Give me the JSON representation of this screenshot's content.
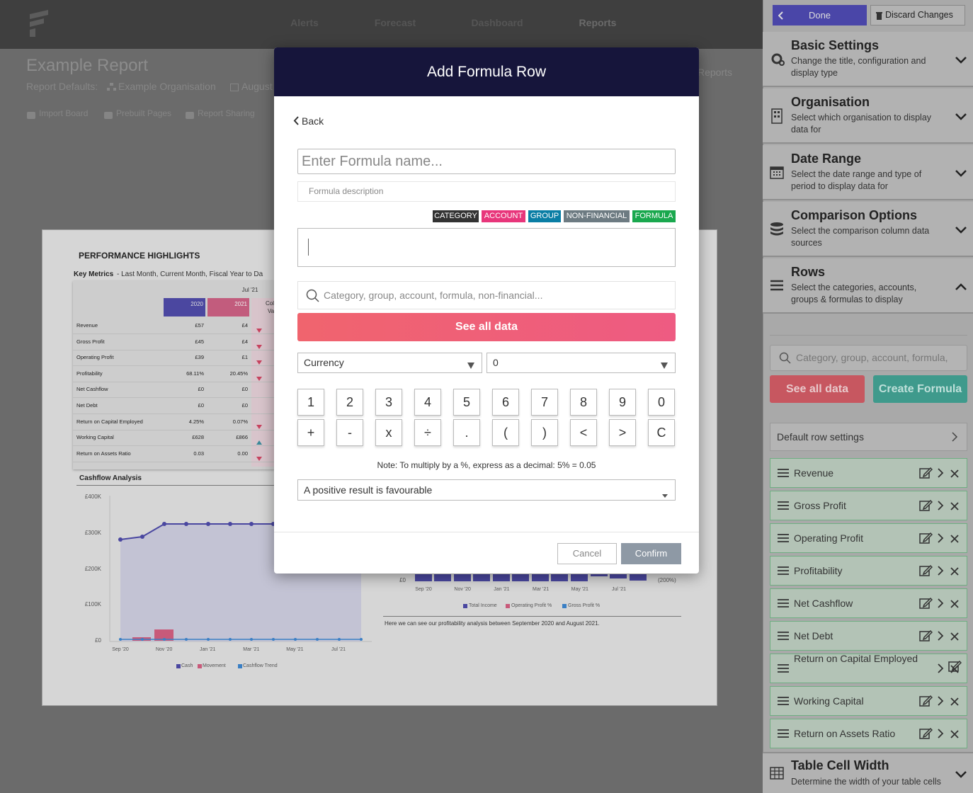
{
  "nav": {
    "items": [
      "Alerts",
      "Forecast",
      "Dashboard",
      "Reports"
    ]
  },
  "report": {
    "title": "Example Report",
    "defaults_label": "Report Defaults:",
    "organisation": "Example Organisation",
    "date": "August",
    "reports_link": "Reports",
    "tools": [
      "Import Board",
      "Prebuilt Pages",
      "Report Sharing"
    ]
  },
  "page": {
    "heading": "PERFORMANCE HIGHLIGHTS",
    "table": {
      "title": "Key Metrics",
      "subtitle": "- Last Month, Current Month, Fiscal Year to Da",
      "period": "Jul '21",
      "columns": [
        "2020",
        "2021"
      ],
      "column3": [
        "Col",
        "Va"
      ],
      "rows": [
        [
          "Revenue",
          "£57",
          "£4"
        ],
        [
          "Gross Profit",
          "£45",
          "£4"
        ],
        [
          "Operating Profit",
          "£39",
          "£1"
        ],
        [
          "Profitability",
          "68.11%",
          "20.45%"
        ],
        [
          "Net Cashflow",
          "£0",
          "£0"
        ],
        [
          "Net Debt",
          "£0",
          "£0"
        ],
        [
          "Return on Capital Employed",
          "4.25%",
          "0.07%"
        ],
        [
          "Working Capital",
          "£628",
          "£866"
        ],
        [
          "Return on Assets Ratio",
          "0.03",
          "0.00"
        ]
      ]
    },
    "cashflow": {
      "title": "Cashflow Analysis",
      "yticks": [
        "£400K",
        "£300K",
        "£200K",
        "£100K",
        "£0"
      ],
      "xticks": [
        "Sep '20",
        "Nov '20",
        "Jan '21",
        "Mar '21",
        "May '21",
        "Jul '21"
      ],
      "legend": [
        "Cash",
        "Movement",
        "Cashflow Trend"
      ]
    },
    "profitability": {
      "xticks": [
        "Sep '20",
        "Nov '20",
        "Jan '21",
        "Mar '21",
        "May '21",
        "Jul '21"
      ],
      "left_label": "£0",
      "right_label": "(200%)",
      "legend": [
        "Total Income",
        "Operating Profit %",
        "Gross Profit %"
      ],
      "note": "Here we can see our profitability analysis between September 2020 and August 2021."
    }
  },
  "modal": {
    "title": "Add Formula Row",
    "back": "Back",
    "name_placeholder": "Enter Formula name...",
    "description_placeholder": "Formula description",
    "tags": [
      "CATEGORY",
      "ACCOUNT",
      "GROUP",
      "NON-FINANCIAL",
      "FORMULA"
    ],
    "search_placeholder": "Category, group, account, formula, non-financial...",
    "see_all": "See all data",
    "format": "Currency",
    "decimals": "0",
    "keys": [
      "1",
      "2",
      "3",
      "4",
      "5",
      "6",
      "7",
      "8",
      "9",
      "0",
      "+",
      "-",
      "x",
      "÷",
      ".",
      "(",
      ")",
      "<",
      ">",
      "C"
    ],
    "note": "Note: To multiply by a %, express as a decimal: 5% = 0.05",
    "favourability": "A positive result is favourable",
    "cancel": "Cancel",
    "confirm": "Confirm"
  },
  "sidebar": {
    "done": "Done",
    "discard": "Discard Changes",
    "sections": [
      {
        "title": "Basic Settings",
        "description": "Change the title, configuration and display type"
      },
      {
        "title": "Organisation",
        "description": "Select which organisation to display data for"
      },
      {
        "title": "Date Range",
        "description": "Select the date range and type of period to display data for"
      },
      {
        "title": "Comparison Options",
        "description": "Select the comparison column data sources"
      },
      {
        "title": "Rows",
        "description": "Select the categories, accounts, groups & formulas to display"
      }
    ],
    "search_placeholder": "Category, group, account, formula,",
    "see_all": "See all data",
    "create_formula": "Create Formula",
    "default_row_settings": "Default row settings",
    "rows": [
      "Revenue",
      "Gross Profit",
      "Operating Profit",
      "Profitability",
      "Net Cashflow",
      "Net Debt",
      "Return on Capital Employed",
      "Working Capital",
      "Return on Assets Ratio"
    ],
    "footer": {
      "title": "Table Cell Width",
      "description": "Determine the width of your table cells"
    }
  }
}
